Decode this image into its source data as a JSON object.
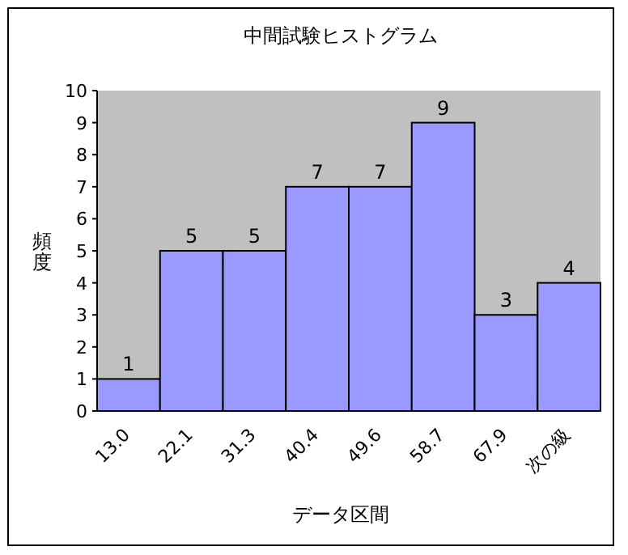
{
  "chart_data": {
    "type": "bar",
    "title": "中間試験ヒストグラム",
    "xlabel": "データ区間",
    "ylabel": "頻度",
    "categories": [
      "13.0",
      "22.1",
      "31.3",
      "40.4",
      "49.6",
      "58.7",
      "67.9",
      "次の級"
    ],
    "values": [
      1,
      5,
      5,
      7,
      7,
      9,
      3,
      4
    ],
    "color": "#9999ff",
    "ylim": [
      0,
      10
    ],
    "yticks": [
      0,
      1,
      2,
      3,
      4,
      5,
      6,
      7,
      8,
      9,
      10
    ],
    "data_labels": true
  }
}
